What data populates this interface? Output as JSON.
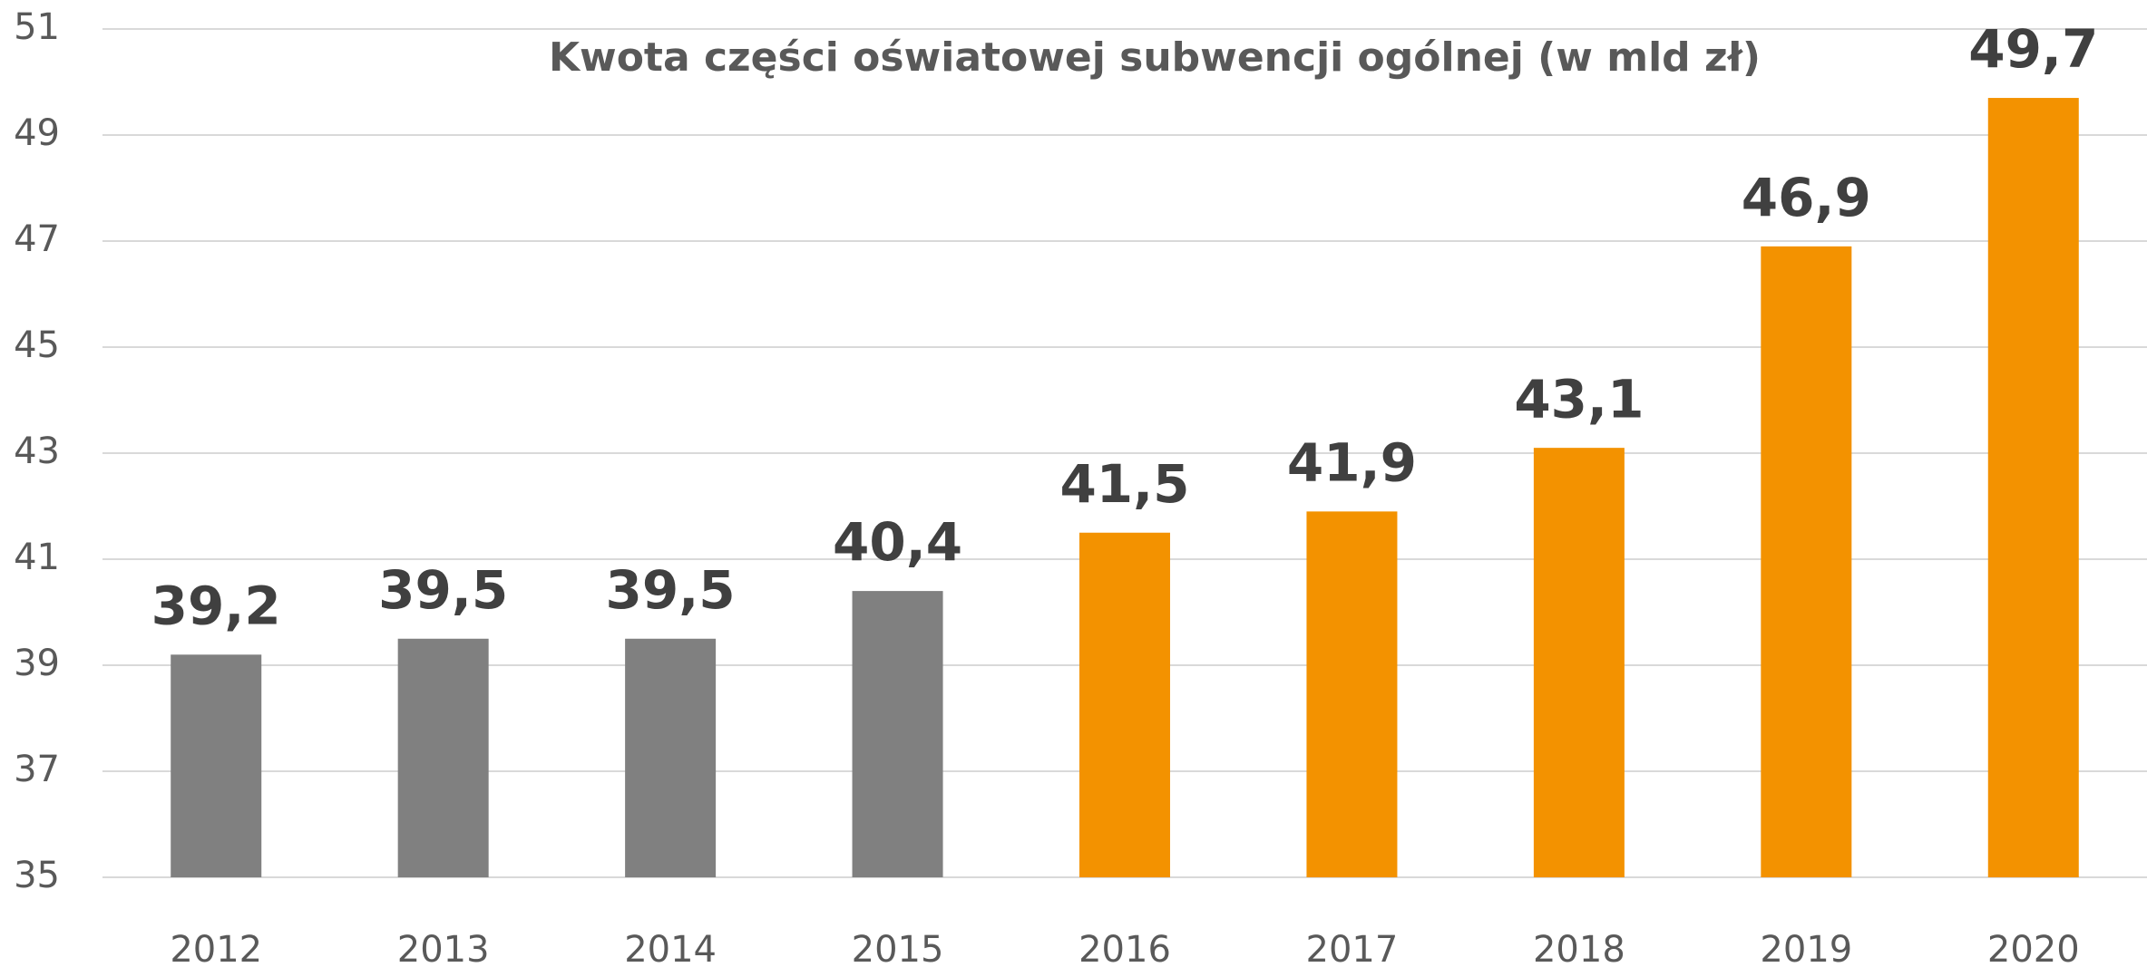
{
  "chart_data": {
    "type": "bar",
    "title": "Kwota części oświatowej subwencji ogólnej (w mld zł)",
    "categories": [
      "2012",
      "2013",
      "2014",
      "2015",
      "2016",
      "2017",
      "2018",
      "2019",
      "2020"
    ],
    "values": [
      39.2,
      39.5,
      39.5,
      40.4,
      41.5,
      41.9,
      43.1,
      46.9,
      49.7
    ],
    "value_labels": [
      "39,2",
      "39,5",
      "39,5",
      "40,4",
      "41,5",
      "41,9",
      "43,1",
      "46,9",
      "49,7"
    ],
    "colors": [
      "#808080",
      "#808080",
      "#808080",
      "#808080",
      "#f39200",
      "#f39200",
      "#f39200",
      "#f39200",
      "#f39200"
    ],
    "ylim": [
      35,
      51
    ],
    "yticks": [
      35,
      37,
      39,
      41,
      43,
      45,
      47,
      49,
      51
    ],
    "grid": true
  }
}
